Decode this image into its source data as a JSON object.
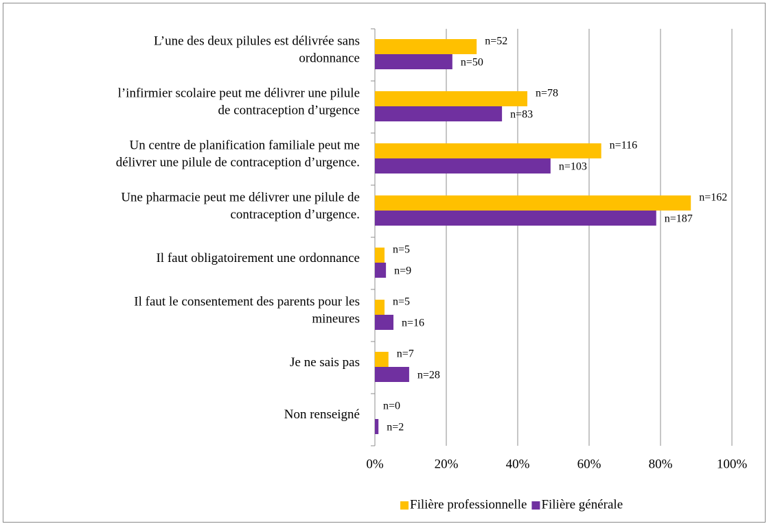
{
  "chart_data": {
    "type": "hbar",
    "categories": [
      "L’une des deux pilules est délivrée sans\nordonnance",
      "l’infirmier scolaire peut me délivrer une pilule\nde contraception d’urgence",
      "Un centre de planification familiale peut me\ndélivrer une pilule de contraception d’urgence.",
      "Une pharmacie peut me délivrer une pilule de\ncontraception d’urgence.",
      "Il faut obligatoirement une ordonnance",
      "Il faut le consentement des parents pour les\nmineures",
      "Je ne sais pas",
      "Non renseigné"
    ],
    "series": [
      {
        "name": "Filière professionnelle",
        "color": "#ffc000",
        "values": [
          28.5,
          42.7,
          63.4,
          88.5,
          2.7,
          2.7,
          3.8,
          0
        ],
        "annotations": [
          "n=52",
          "n=78",
          "n=116",
          "n=162",
          "n=5",
          "n=5",
          "n=7",
          "n=0"
        ]
      },
      {
        "name": "Filière générale",
        "color": "#7030a0",
        "values": [
          21.7,
          35.6,
          49.2,
          78.8,
          3.1,
          5.2,
          9.6,
          1.0
        ],
        "annotations": [
          "n=50",
          "n=83",
          "n=103",
          "n=187",
          "n=9",
          "n=16",
          "n=28",
          "n=2"
        ]
      }
    ],
    "xlim": [
      0,
      100
    ],
    "xticks": [
      {
        "value": 0,
        "label": "0%"
      },
      {
        "value": 20,
        "label": "20%"
      },
      {
        "value": 40,
        "label": "40%"
      },
      {
        "value": 60,
        "label": "60%"
      },
      {
        "value": 80,
        "label": "80%"
      },
      {
        "value": 100,
        "label": "100%"
      }
    ],
    "grid": true,
    "legend": "bottom"
  }
}
